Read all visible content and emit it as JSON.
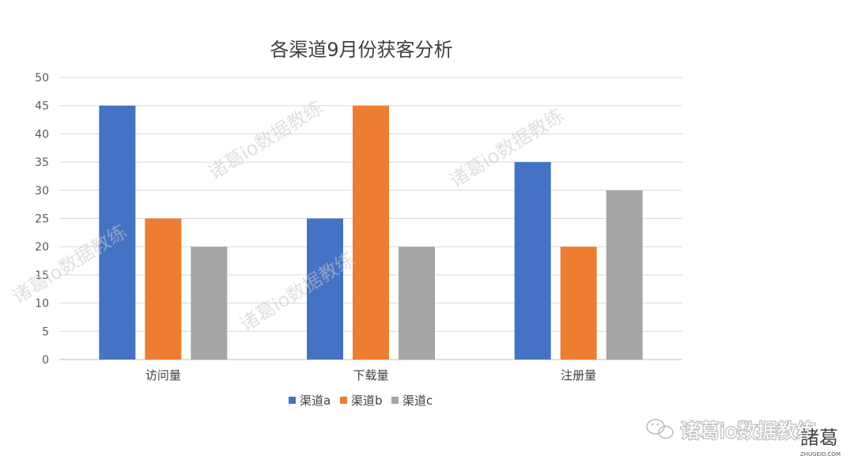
{
  "chart_data": {
    "type": "bar",
    "title": "各渠道9月份获客分析",
    "categories": [
      "访问量",
      "下载量",
      "注册量"
    ],
    "series": [
      {
        "name": "渠道a",
        "color": "#4472c4",
        "values": [
          45,
          25,
          35
        ]
      },
      {
        "name": "渠道b",
        "color": "#ed7d31",
        "values": [
          25,
          45,
          20
        ]
      },
      {
        "name": "渠道c",
        "color": "#a5a5a5",
        "values": [
          20,
          20,
          30
        ]
      }
    ],
    "yticks": [
      "0",
      "5",
      "10",
      "15",
      "20",
      "25",
      "30",
      "35",
      "40",
      "45",
      "50"
    ],
    "ylim": [
      0,
      50
    ],
    "grid": true,
    "legend_position": "bottom"
  },
  "watermark": "诸葛io数据教练",
  "footer": {
    "brand": "诸葛io数据教练",
    "logo": "諸葛",
    "logo_url": "ZHUGEIO.COM",
    "icon": "wechat-icon"
  }
}
